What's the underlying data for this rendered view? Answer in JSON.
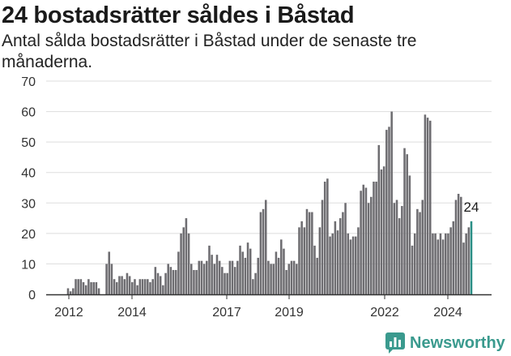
{
  "chart_data": {
    "type": "bar",
    "title": "24 bostadsrätter såldes i Båstad",
    "subtitle": "Antal sålda bostadsrätter i Båstad under de senaste tre månaderna.",
    "xlabel": "",
    "ylabel": "",
    "ylim": [
      0,
      70
    ],
    "yticks": [
      0,
      10,
      20,
      30,
      40,
      50,
      60,
      70
    ],
    "xtick_labels": [
      "2012",
      "2014",
      "2017",
      "2019",
      "2022",
      "2024"
    ],
    "grid": true,
    "series": [
      {
        "values": [
          2,
          1,
          2,
          5,
          5,
          5,
          4,
          3,
          5,
          4,
          4,
          4,
          2,
          0,
          0,
          10,
          14,
          10,
          5,
          4,
          6,
          6,
          5,
          7,
          6,
          4,
          5,
          3,
          5,
          5,
          5,
          5,
          4,
          5,
          9,
          7,
          6,
          3,
          7,
          10,
          9,
          8,
          8,
          14,
          20,
          22,
          25,
          20,
          10,
          8,
          8,
          11,
          11,
          10,
          11,
          16,
          13,
          10,
          13,
          11,
          9,
          7,
          7,
          11,
          11,
          9,
          11,
          16,
          14,
          12,
          17,
          15,
          5,
          7,
          12,
          27,
          28,
          31,
          11,
          10,
          10,
          14,
          12,
          18,
          15,
          8,
          10,
          11,
          11,
          10,
          22,
          24,
          22,
          28,
          27,
          27,
          16,
          12,
          22,
          31,
          37,
          38,
          19,
          20,
          24,
          21,
          25,
          27,
          30,
          20,
          18,
          19,
          19,
          22,
          34,
          36,
          35,
          30,
          32,
          37,
          37,
          49,
          41,
          42,
          54,
          55,
          60,
          30,
          31,
          25,
          29,
          48,
          46,
          39,
          16,
          20,
          28,
          27,
          31,
          59,
          58,
          57,
          20,
          20,
          18,
          20,
          18,
          20,
          20,
          22,
          24,
          31,
          33,
          32,
          17,
          20,
          22,
          24
        ]
      }
    ],
    "last_value": 24,
    "last_label": "24"
  },
  "colors": {
    "bar": "#6e6d71",
    "highlight": "#2a8f86",
    "grid": "#dddddd",
    "axis": "#333333",
    "brand": "#3a9a8e"
  },
  "brand": {
    "name": "Newsworthy",
    "icon": "bar-chart-speech-bubble-icon"
  }
}
